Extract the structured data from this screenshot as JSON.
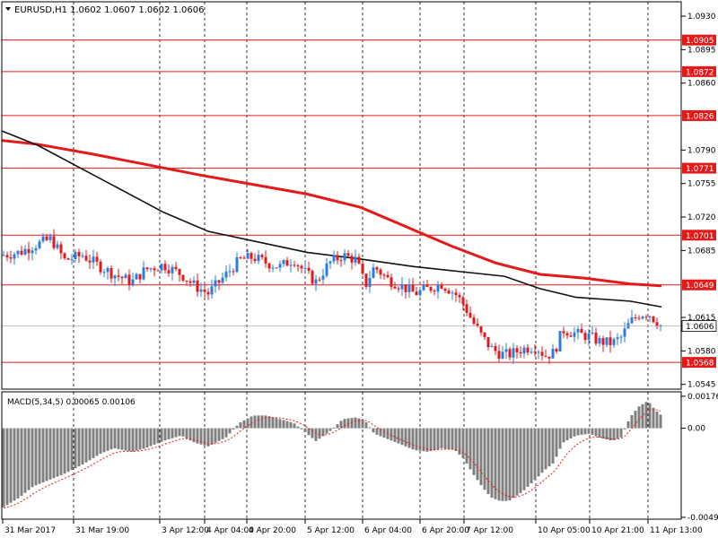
{
  "symbol_header": {
    "symbol": "EURUSD,H1",
    "ohlc": "1.0602 1.0607 1.0602 1.0606",
    "arrow_icon": "triangle-down-icon"
  },
  "chart_data": [
    {
      "type": "candlestick",
      "title": "EURUSD,H1",
      "ylim": [
        1.054,
        1.0945
      ],
      "y_ticks": [
        "1.0930",
        "1.0895",
        "1.0860",
        "1.0790",
        "1.0755",
        "1.0720",
        "1.0685",
        "1.0615",
        "1.0580",
        "1.0545"
      ],
      "x_ticks": [
        "31 Mar 2017",
        "31 Mar 19:00",
        "3 Apr 12:00",
        "4 Apr 04:00",
        "4 Apr 20:00",
        "5 Apr 12:00",
        "6 Apr 04:00",
        "6 Apr 20:00",
        "7 Apr 12:00",
        "10 Apr 05:00",
        "10 Apr 21:00",
        "11 Apr 13:00"
      ],
      "horizontal_levels": [
        {
          "label": "1.0905",
          "value": 1.0905
        },
        {
          "label": "1.0872",
          "value": 1.0872
        },
        {
          "label": "1.0826",
          "value": 1.0826
        },
        {
          "label": "1.0771",
          "value": 1.0771
        },
        {
          "label": "1.0701",
          "value": 1.0701
        },
        {
          "label": "1.0649",
          "value": 1.0649
        },
        {
          "label": "1.0568",
          "value": 1.0568
        }
      ],
      "current_price": {
        "label": "1.0606",
        "value": 1.0606
      },
      "close_path": [
        [
          0,
          1.068
        ],
        [
          20,
          1.0683
        ],
        [
          35,
          1.069
        ],
        [
          55,
          1.0697
        ],
        [
          70,
          1.0675
        ],
        [
          90,
          1.068
        ],
        [
          110,
          1.0668
        ],
        [
          125,
          1.066
        ],
        [
          145,
          1.0652
        ],
        [
          160,
          1.0665
        ],
        [
          180,
          1.067
        ],
        [
          200,
          1.066
        ],
        [
          215,
          1.0648
        ],
        [
          230,
          1.064
        ],
        [
          250,
          1.066
        ],
        [
          265,
          1.0675
        ],
        [
          280,
          1.0678
        ],
        [
          295,
          1.0672
        ],
        [
          310,
          1.0668
        ],
        [
          325,
          1.0676
        ],
        [
          340,
          1.066
        ],
        [
          350,
          1.0652
        ],
        [
          365,
          1.0672
        ],
        [
          380,
          1.068
        ],
        [
          395,
          1.0675
        ],
        [
          405,
          1.0648
        ],
        [
          415,
          1.0668
        ],
        [
          430,
          1.0655
        ],
        [
          445,
          1.0648
        ],
        [
          460,
          1.064
        ],
        [
          475,
          1.0645
        ],
        [
          490,
          1.065
        ],
        [
          505,
          1.064
        ],
        [
          515,
          1.0628
        ],
        [
          525,
          1.061
        ],
        [
          535,
          1.0595
        ],
        [
          545,
          1.0583
        ],
        [
          555,
          1.0577
        ],
        [
          565,
          1.0576
        ],
        [
          580,
          1.0582
        ],
        [
          595,
          1.0585
        ],
        [
          605,
          1.0575
        ],
        [
          615,
          1.0578
        ],
        [
          625,
          1.0602
        ],
        [
          640,
          1.0598
        ],
        [
          655,
          1.0595
        ],
        [
          665,
          1.059
        ],
        [
          680,
          1.0588
        ],
        [
          690,
          1.0594
        ],
        [
          700,
          1.061
        ],
        [
          710,
          1.0618
        ],
        [
          720,
          1.062
        ],
        [
          728,
          1.0612
        ],
        [
          735,
          1.0606
        ]
      ],
      "moving_averages": [
        {
          "color": "#e41a1a",
          "points": [
            [
              0,
              1.08
            ],
            [
              40,
              1.0796
            ],
            [
              100,
              1.0786
            ],
            [
              160,
              1.0775
            ],
            [
              220,
              1.0764
            ],
            [
              280,
              1.0754
            ],
            [
              340,
              1.0744
            ],
            [
              400,
              1.073
            ],
            [
              450,
              1.071
            ],
            [
              500,
              1.069
            ],
            [
              550,
              1.0672
            ],
            [
              600,
              1.066
            ],
            [
              650,
              1.0656
            ],
            [
              700,
              1.065
            ],
            [
              735,
              1.0648
            ]
          ]
        },
        {
          "color": "#111111",
          "points": [
            [
              0,
              1.081
            ],
            [
              40,
              1.0795
            ],
            [
              90,
              1.077
            ],
            [
              140,
              1.0745
            ],
            [
              180,
              1.0725
            ],
            [
              230,
              1.0705
            ],
            [
              280,
              1.0695
            ],
            [
              340,
              1.0683
            ],
            [
              400,
              1.0676
            ],
            [
              460,
              1.0668
            ],
            [
              520,
              1.0662
            ],
            [
              560,
              1.0658
            ],
            [
              600,
              1.0645
            ],
            [
              640,
              1.0636
            ],
            [
              700,
              1.0632
            ],
            [
              735,
              1.0626
            ]
          ]
        }
      ]
    },
    {
      "type": "histogram",
      "title": "MACD(5,34,5) 0.00065 0.00106",
      "ylim": [
        -0.005,
        0.002
      ],
      "y_ticks": [
        "0.00176",
        "0.00",
        "-0.0049"
      ],
      "histogram_path": [
        [
          0,
          -0.0044
        ],
        [
          20,
          -0.0038
        ],
        [
          35,
          -0.0032
        ],
        [
          55,
          -0.0028
        ],
        [
          70,
          -0.0025
        ],
        [
          90,
          -0.002
        ],
        [
          110,
          -0.0014
        ],
        [
          125,
          -0.0011
        ],
        [
          145,
          -0.0013
        ],
        [
          160,
          -0.0011
        ],
        [
          180,
          -0.0007
        ],
        [
          200,
          -0.0004
        ],
        [
          215,
          -0.0008
        ],
        [
          230,
          -0.001
        ],
        [
          250,
          -0.0005
        ],
        [
          265,
          0.0003
        ],
        [
          280,
          0.0007
        ],
        [
          295,
          0.0007
        ],
        [
          310,
          0.0005
        ],
        [
          325,
          0.0003
        ],
        [
          340,
          -0.0003
        ],
        [
          350,
          -0.0007
        ],
        [
          365,
          -0.0002
        ],
        [
          380,
          0.0005
        ],
        [
          395,
          0.0006
        ],
        [
          405,
          0.0004
        ],
        [
          415,
          -0.0003
        ],
        [
          430,
          -0.0006
        ],
        [
          445,
          -0.0009
        ],
        [
          460,
          -0.0012
        ],
        [
          475,
          -0.0013
        ],
        [
          490,
          -0.0011
        ],
        [
          505,
          -0.0012
        ],
        [
          515,
          -0.0017
        ],
        [
          525,
          -0.0025
        ],
        [
          535,
          -0.0032
        ],
        [
          545,
          -0.0038
        ],
        [
          555,
          -0.004
        ],
        [
          565,
          -0.004
        ],
        [
          580,
          -0.0035
        ],
        [
          595,
          -0.0028
        ],
        [
          605,
          -0.0023
        ],
        [
          615,
          -0.0019
        ],
        [
          625,
          -0.0008
        ],
        [
          640,
          -0.0004
        ],
        [
          655,
          -0.0003
        ],
        [
          665,
          -0.0005
        ],
        [
          680,
          -0.0007
        ],
        [
          690,
          -0.0005
        ],
        [
          700,
          0.0006
        ],
        [
          710,
          0.0012
        ],
        [
          720,
          0.0015
        ],
        [
          728,
          0.001
        ],
        [
          735,
          0.0007
        ]
      ],
      "signal_color": "#e41a1a",
      "bar_color": "#7f7f7f"
    }
  ]
}
